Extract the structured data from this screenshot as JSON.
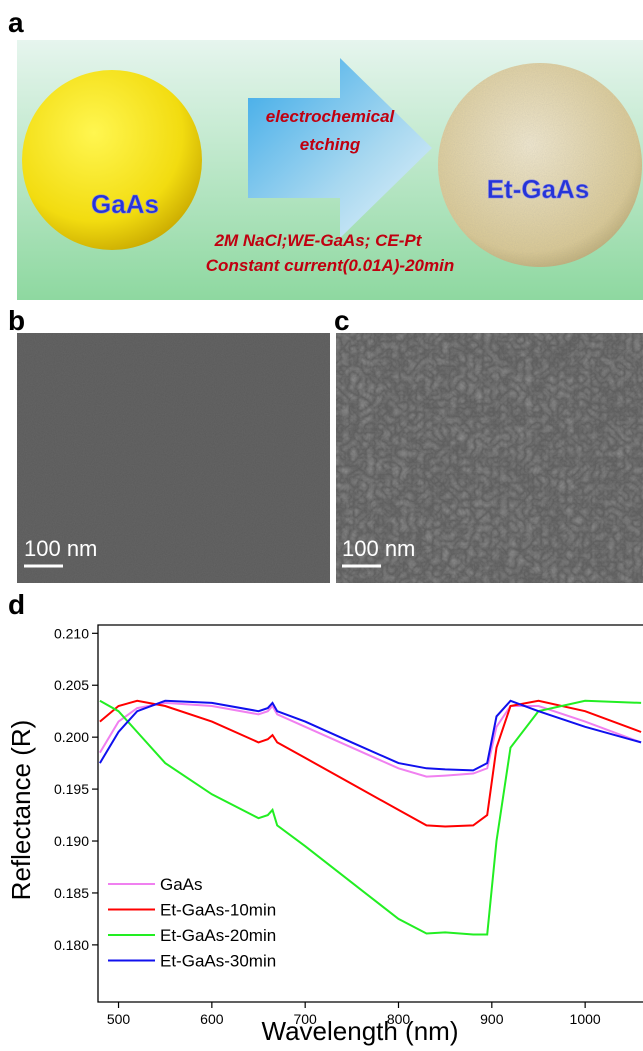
{
  "panel_a": {
    "label": "a",
    "substrate": "GaAs",
    "product": "Et-GaAs",
    "arrow_text": [
      "electrochemical",
      "etching"
    ],
    "conditions": [
      "2M NaCl;WE-GaAs; CE-Pt",
      "Constant current(0.01A)-20min"
    ]
  },
  "panel_b": {
    "label": "b",
    "scale_bar": "100 nm"
  },
  "panel_c": {
    "label": "c",
    "scale_bar": "100 nm"
  },
  "chart_data": {
    "type": "line",
    "panel_label": "d",
    "x_label": "Wavelength (nm)",
    "y_label": "Reflectance (R)",
    "x": [
      480,
      500,
      520,
      550,
      600,
      650,
      660,
      665,
      670,
      700,
      750,
      800,
      830,
      850,
      880,
      895,
      905,
      920,
      950,
      1000,
      1060
    ],
    "series": [
      {
        "name": "GaAs",
        "color": "#f080f0",
        "values": [
          0.1985,
          0.2015,
          0.2028,
          0.2033,
          0.203,
          0.2022,
          0.2025,
          0.203,
          0.2022,
          0.201,
          0.199,
          0.197,
          0.1962,
          0.1963,
          0.1965,
          0.197,
          0.201,
          0.203,
          0.203,
          0.2015,
          0.1995
        ]
      },
      {
        "name": "Et-GaAs-10min",
        "color": "#ff0000",
        "values": [
          0.2015,
          0.203,
          0.2035,
          0.203,
          0.2015,
          0.1995,
          0.1998,
          0.2002,
          0.1995,
          0.198,
          0.1955,
          0.193,
          0.1915,
          0.1914,
          0.1915,
          0.1925,
          0.199,
          0.203,
          0.2035,
          0.2025,
          0.2005
        ]
      },
      {
        "name": "Et-GaAs-20min",
        "color": "#22ee22",
        "values": [
          0.2035,
          0.2025,
          0.2005,
          0.1975,
          0.1945,
          0.1922,
          0.1925,
          0.193,
          0.1915,
          0.1895,
          0.186,
          0.1825,
          0.1811,
          0.1812,
          0.181,
          0.181,
          0.19,
          0.199,
          0.2025,
          0.2035,
          0.2033
        ]
      },
      {
        "name": "Et-GaAs-30min",
        "color": "#1010ee",
        "values": [
          0.1975,
          0.2005,
          0.2025,
          0.2035,
          0.2033,
          0.2025,
          0.2028,
          0.2033,
          0.2025,
          0.2015,
          0.1995,
          0.1975,
          0.197,
          0.1969,
          0.1968,
          0.1975,
          0.202,
          0.2035,
          0.2025,
          0.201,
          0.1995
        ]
      }
    ],
    "xlim": [
      478,
      1062
    ],
    "ylim": [
      0.1745,
      0.2108
    ],
    "xticks": [
      500,
      600,
      700,
      800,
      900,
      1000
    ],
    "yticks": [
      {
        "value": 0.18,
        "label": "0.180"
      },
      0.185,
      {
        "value": 0.19,
        "label": "0.190"
      },
      0.195,
      {
        "value": 0.2,
        "label": "0.200"
      },
      0.205,
      {
        "value": 0.21,
        "label": "0.210"
      }
    ],
    "legend": "lower left"
  }
}
